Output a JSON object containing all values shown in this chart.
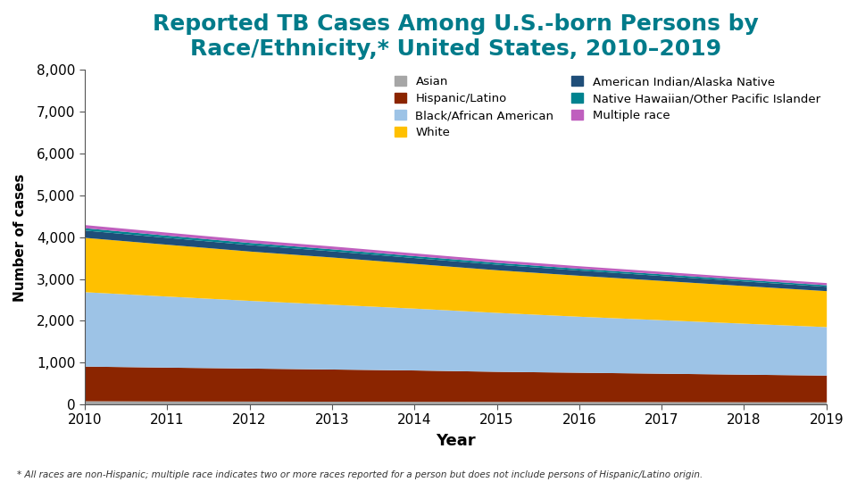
{
  "title": "Reported TB Cases Among U.S.-born Persons by\nRace/Ethnicity,* United States, 2010–2019",
  "xlabel": "Year",
  "ylabel": "Number of cases",
  "footnote": "* All races are non-Hispanic; multiple race indicates two or more races reported for a person but does not include persons of Hispanic/Latino origin.",
  "years": [
    2010,
    2011,
    2012,
    2013,
    2014,
    2015,
    2016,
    2017,
    2018,
    2019
  ],
  "series": {
    "Asian": {
      "color": "#a6a6a6",
      "values": [
        85,
        80,
        78,
        75,
        72,
        70,
        68,
        65,
        62,
        60
      ]
    },
    "Hispanic/Latino": {
      "color": "#8b2500",
      "values": [
        830,
        810,
        790,
        770,
        750,
        720,
        700,
        680,
        660,
        640
      ]
    },
    "Black/African American": {
      "color": "#9dc3e6",
      "values": [
        1780,
        1700,
        1620,
        1550,
        1480,
        1410,
        1340,
        1280,
        1220,
        1160
      ]
    },
    "White": {
      "color": "#ffc000",
      "values": [
        1300,
        1240,
        1180,
        1130,
        1070,
        1020,
        980,
        940,
        900,
        860
      ]
    },
    "American Indian/Alaska Native": {
      "color": "#1f4e79",
      "values": [
        175,
        165,
        155,
        148,
        140,
        133,
        126,
        118,
        110,
        105
      ]
    },
    "Native Hawaiian/Other Pacific Islander": {
      "color": "#00838f",
      "values": [
        55,
        52,
        50,
        48,
        46,
        44,
        42,
        40,
        38,
        36
      ]
    },
    "Multiple race": {
      "color": "#bf5fbe",
      "values": [
        75,
        72,
        70,
        68,
        65,
        62,
        60,
        58,
        55,
        52
      ]
    }
  },
  "stack_order": [
    "Asian",
    "Hispanic/Latino",
    "Black/African American",
    "White",
    "American Indian/Alaska Native",
    "Native Hawaiian/Other Pacific Islander",
    "Multiple race"
  ],
  "legend_left": [
    "Asian",
    "Black/African American",
    "American Indian/Alaska Native",
    "Multiple race"
  ],
  "legend_right": [
    "Hispanic/Latino",
    "White",
    "Native Hawaiian/Other Pacific Islander"
  ],
  "ylim": [
    0,
    8000
  ],
  "yticks": [
    0,
    1000,
    2000,
    3000,
    4000,
    5000,
    6000,
    7000,
    8000
  ],
  "title_color": "#007b8a",
  "title_fontsize": 18,
  "background_color": "#ffffff"
}
